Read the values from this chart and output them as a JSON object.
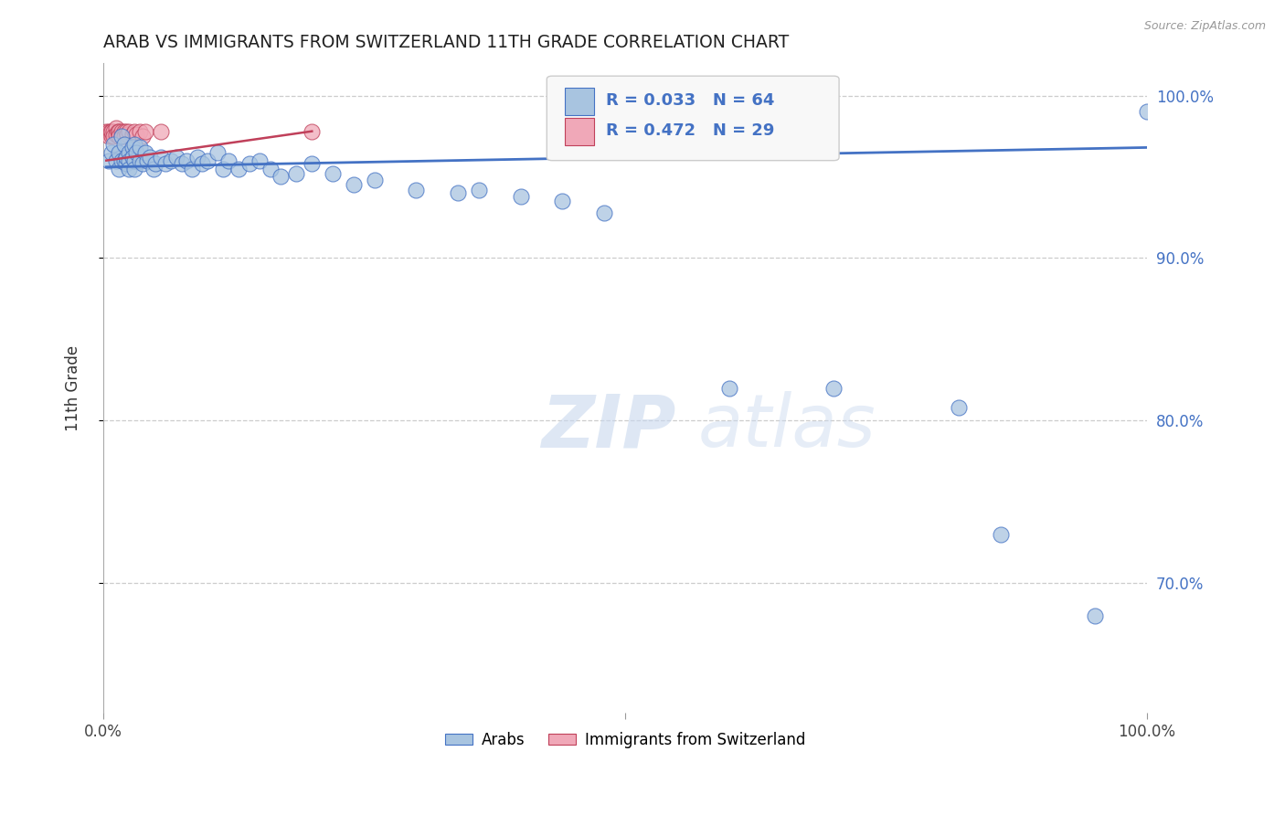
{
  "title": "ARAB VS IMMIGRANTS FROM SWITZERLAND 11TH GRADE CORRELATION CHART",
  "source_text": "Source: ZipAtlas.com",
  "ylabel": "11th Grade",
  "watermark_zip": "ZIP",
  "watermark_atlas": "atlas",
  "legend_blue_R": "R = 0.033",
  "legend_blue_N": "N = 64",
  "legend_pink_R": "R = 0.472",
  "legend_pink_N": "N = 29",
  "series_blue_label": "Arabs",
  "series_pink_label": "Immigrants from Switzerland",
  "blue_color": "#a8c4e0",
  "pink_color": "#f0a8b8",
  "trend_blue_color": "#4472c4",
  "trend_pink_color": "#c0405a",
  "legend_text_color": "#4472c4",
  "xlim": [
    0.0,
    1.0
  ],
  "ylim": [
    0.62,
    1.02
  ],
  "yticks": [
    0.7,
    0.8,
    0.9,
    1.0
  ],
  "ytick_labels": [
    "70.0%",
    "80.0%",
    "90.0%",
    "100.0%"
  ],
  "grid_yticks": [
    0.7,
    0.8,
    0.9,
    1.0
  ],
  "xticks": [
    0.0,
    0.5,
    1.0
  ],
  "xtick_labels": [
    "0.0%",
    "",
    "100.0%"
  ],
  "grid_color": "#cccccc",
  "bg_color": "#ffffff",
  "blue_x": [
    0.005,
    0.008,
    0.01,
    0.012,
    0.015,
    0.015,
    0.018,
    0.018,
    0.02,
    0.02,
    0.022,
    0.022,
    0.025,
    0.025,
    0.025,
    0.028,
    0.028,
    0.03,
    0.03,
    0.03,
    0.032,
    0.035,
    0.035,
    0.038,
    0.04,
    0.042,
    0.045,
    0.048,
    0.05,
    0.055,
    0.06,
    0.065,
    0.07,
    0.075,
    0.08,
    0.085,
    0.09,
    0.095,
    0.1,
    0.11,
    0.115,
    0.12,
    0.13,
    0.14,
    0.15,
    0.16,
    0.17,
    0.185,
    0.2,
    0.22,
    0.24,
    0.26,
    0.3,
    0.34,
    0.36,
    0.4,
    0.44,
    0.48,
    0.6,
    0.7,
    0.82,
    0.86,
    0.95,
    1.0
  ],
  "blue_y": [
    0.96,
    0.965,
    0.97,
    0.96,
    0.965,
    0.955,
    0.96,
    0.975,
    0.97,
    0.96,
    0.958,
    0.962,
    0.965,
    0.96,
    0.955,
    0.968,
    0.962,
    0.97,
    0.96,
    0.955,
    0.965,
    0.96,
    0.968,
    0.958,
    0.965,
    0.96,
    0.962,
    0.955,
    0.958,
    0.962,
    0.958,
    0.96,
    0.962,
    0.958,
    0.96,
    0.955,
    0.962,
    0.958,
    0.96,
    0.965,
    0.955,
    0.96,
    0.955,
    0.958,
    0.96,
    0.955,
    0.95,
    0.952,
    0.958,
    0.952,
    0.945,
    0.948,
    0.942,
    0.94,
    0.942,
    0.938,
    0.935,
    0.928,
    0.82,
    0.82,
    0.808,
    0.73,
    0.68,
    0.99
  ],
  "pink_x": [
    0.003,
    0.005,
    0.005,
    0.007,
    0.008,
    0.008,
    0.01,
    0.01,
    0.012,
    0.012,
    0.014,
    0.015,
    0.015,
    0.015,
    0.018,
    0.018,
    0.02,
    0.02,
    0.022,
    0.023,
    0.025,
    0.028,
    0.03,
    0.032,
    0.035,
    0.038,
    0.04,
    0.055,
    0.2
  ],
  "pink_y": [
    0.978,
    0.978,
    0.975,
    0.978,
    0.975,
    0.978,
    0.978,
    0.975,
    0.98,
    0.976,
    0.978,
    0.976,
    0.978,
    0.975,
    0.978,
    0.975,
    0.978,
    0.975,
    0.978,
    0.976,
    0.978,
    0.976,
    0.978,
    0.976,
    0.978,
    0.975,
    0.978,
    0.978,
    0.978
  ],
  "blue_trend_x": [
    0.003,
    1.0
  ],
  "blue_trend_y": [
    0.956,
    0.968
  ],
  "pink_trend_x": [
    0.003,
    0.2
  ],
  "pink_trend_y": [
    0.96,
    0.978
  ]
}
